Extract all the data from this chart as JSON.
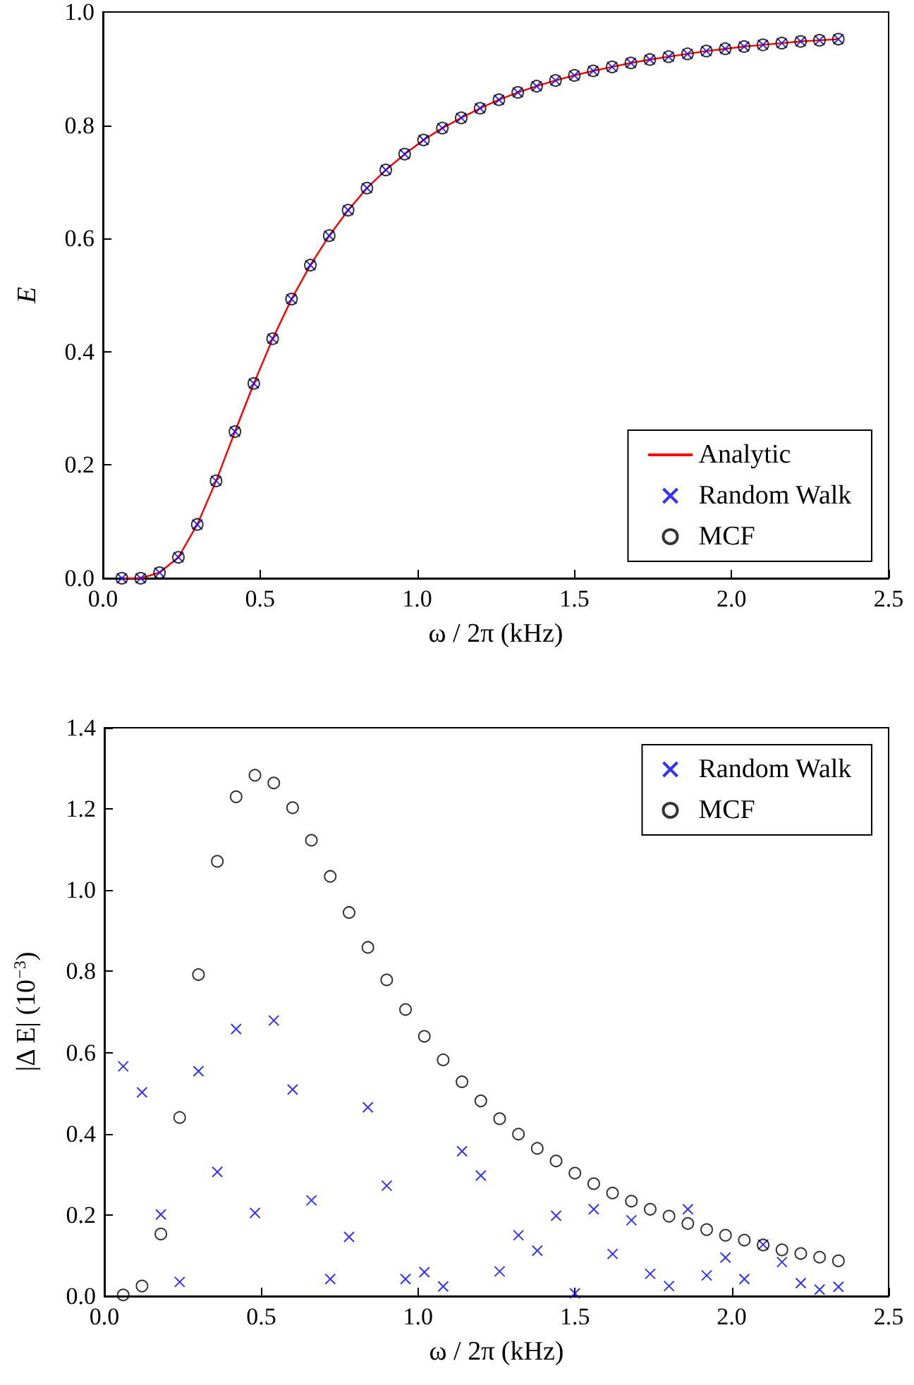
{
  "chart_data": [
    {
      "type": "line",
      "xlabel": "ω / 2π (kHz)",
      "ylabel": "E",
      "legend": "bottom right",
      "x": [
        0.06,
        0.12,
        0.18,
        0.24,
        0.3,
        0.36,
        0.42,
        0.48,
        0.54,
        0.6,
        0.66,
        0.72,
        0.78,
        0.84,
        0.9,
        0.96,
        1.02,
        1.08,
        1.14,
        1.2,
        1.26,
        1.32,
        1.38,
        1.44,
        1.5,
        1.56,
        1.62,
        1.68,
        1.74,
        1.8,
        1.86,
        1.92,
        1.98,
        2.04,
        2.1,
        2.16,
        2.22,
        2.28,
        2.34
      ],
      "series": [
        {
          "name": "Analytic",
          "color": "#ff0000",
          "marker": "none",
          "line_style": "solid",
          "values": [
            0.0,
            0.0,
            0.01,
            0.037,
            0.095,
            0.172,
            0.259,
            0.344,
            0.423,
            0.493,
            0.553,
            0.605,
            0.65,
            0.689,
            0.721,
            0.749,
            0.774,
            0.795,
            0.813,
            0.83,
            0.845,
            0.858,
            0.869,
            0.879,
            0.888,
            0.896,
            0.903,
            0.91,
            0.916,
            0.921,
            0.926,
            0.931,
            0.935,
            0.939,
            0.942,
            0.945,
            0.948,
            0.95,
            0.952
          ]
        },
        {
          "name": "Random Walk",
          "type": "scatter",
          "color": "#0000ff",
          "marker": "cross",
          "values": [
            0.0,
            0.0,
            0.01,
            0.037,
            0.095,
            0.172,
            0.259,
            0.344,
            0.423,
            0.493,
            0.553,
            0.605,
            0.65,
            0.689,
            0.721,
            0.749,
            0.774,
            0.795,
            0.813,
            0.83,
            0.845,
            0.858,
            0.869,
            0.879,
            0.888,
            0.896,
            0.903,
            0.91,
            0.916,
            0.921,
            0.926,
            0.931,
            0.935,
            0.939,
            0.942,
            0.945,
            0.948,
            0.95,
            0.952
          ]
        },
        {
          "name": "MCF",
          "type": "scatter",
          "color": "#000000",
          "marker": "circle",
          "values": [
            0.0,
            0.0,
            0.01,
            0.037,
            0.095,
            0.172,
            0.259,
            0.344,
            0.423,
            0.493,
            0.553,
            0.605,
            0.65,
            0.689,
            0.721,
            0.749,
            0.774,
            0.795,
            0.813,
            0.83,
            0.845,
            0.858,
            0.869,
            0.879,
            0.888,
            0.896,
            0.903,
            0.91,
            0.916,
            0.921,
            0.926,
            0.931,
            0.935,
            0.939,
            0.942,
            0.945,
            0.948,
            0.95,
            0.952
          ]
        }
      ],
      "xlim": [
        0,
        2.5
      ],
      "xticks": [
        {
          "value": 0,
          "label": "0.0"
        },
        {
          "value": 0.5,
          "label": "0.5"
        },
        {
          "value": 1,
          "label": "1.0"
        },
        {
          "value": 1.5,
          "label": "1.5"
        },
        {
          "value": 2,
          "label": "2.0"
        },
        {
          "value": 2.5,
          "label": "2.5"
        }
      ],
      "ylim": [
        0,
        1
      ],
      "yticks": [
        {
          "value": 0,
          "label": "0.0"
        },
        {
          "value": 0.2,
          "label": "0.2"
        },
        {
          "value": 0.4,
          "label": "0.4"
        },
        {
          "value": 0.6,
          "label": "0.6"
        },
        {
          "value": 0.8,
          "label": "0.8"
        },
        {
          "value": 1,
          "label": "1.0"
        }
      ]
    },
    {
      "type": "scatter",
      "xlabel": "ω / 2π (kHz)",
      "ylabel": "|Δ E| (10$^{−3}$)",
      "legend": "top right",
      "x": [
        0.06,
        0.12,
        0.18,
        0.24,
        0.3,
        0.36,
        0.42,
        0.48,
        0.54,
        0.6,
        0.66,
        0.72,
        0.78,
        0.84,
        0.9,
        0.96,
        1.02,
        1.08,
        1.14,
        1.2,
        1.26,
        1.32,
        1.38,
        1.44,
        1.5,
        1.56,
        1.62,
        1.68,
        1.74,
        1.8,
        1.86,
        1.92,
        1.98,
        2.04,
        2.1,
        2.16,
        2.22,
        2.28,
        2.34
      ],
      "series": [
        {
          "name": "Random Walk",
          "color": "#0000ff",
          "marker": "cross",
          "values": [
            0.566,
            0.502,
            0.201,
            0.035,
            0.554,
            0.306,
            0.658,
            0.205,
            0.679,
            0.509,
            0.236,
            0.042,
            0.146,
            0.465,
            0.272,
            0.042,
            0.059,
            0.024,
            0.357,
            0.297,
            0.061,
            0.15,
            0.112,
            0.198,
            0.007,
            0.214,
            0.104,
            0.187,
            0.055,
            0.025,
            0.214,
            0.051,
            0.095,
            0.042,
            0.127,
            0.084,
            0.032,
            0.016,
            0.023
          ]
        },
        {
          "name": "MCF",
          "color": "#000000",
          "marker": "circle",
          "values": [
            0.003,
            0.025,
            0.153,
            0.44,
            0.792,
            1.071,
            1.23,
            1.283,
            1.264,
            1.203,
            1.123,
            1.034,
            0.945,
            0.859,
            0.779,
            0.706,
            0.64,
            0.582,
            0.528,
            0.481,
            0.437,
            0.399,
            0.364,
            0.333,
            0.303,
            0.277,
            0.254,
            0.234,
            0.214,
            0.197,
            0.179,
            0.164,
            0.15,
            0.138,
            0.126,
            0.114,
            0.105,
            0.096,
            0.087
          ]
        }
      ],
      "xlim": [
        0,
        2.5
      ],
      "xticks": [
        {
          "value": 0,
          "label": "0.0"
        },
        {
          "value": 0.5,
          "label": "0.5"
        },
        {
          "value": 1,
          "label": "1.0"
        },
        {
          "value": 1.5,
          "label": "1.5"
        },
        {
          "value": 2,
          "label": "2.0"
        },
        {
          "value": 2.5,
          "label": "2.5"
        }
      ],
      "ylim": [
        0,
        1.4
      ],
      "yticks": [
        {
          "value": 0,
          "label": "0.0"
        },
        {
          "value": 0.2,
          "label": "0.2"
        },
        {
          "value": 0.4,
          "label": "0.4"
        },
        {
          "value": 0.6,
          "label": "0.6"
        },
        {
          "value": 0.8,
          "label": "0.8"
        },
        {
          "value": 1,
          "label": "1.0"
        },
        {
          "value": 1.2,
          "label": "1.2"
        },
        {
          "value": 1.4,
          "label": "1.4"
        }
      ]
    }
  ]
}
